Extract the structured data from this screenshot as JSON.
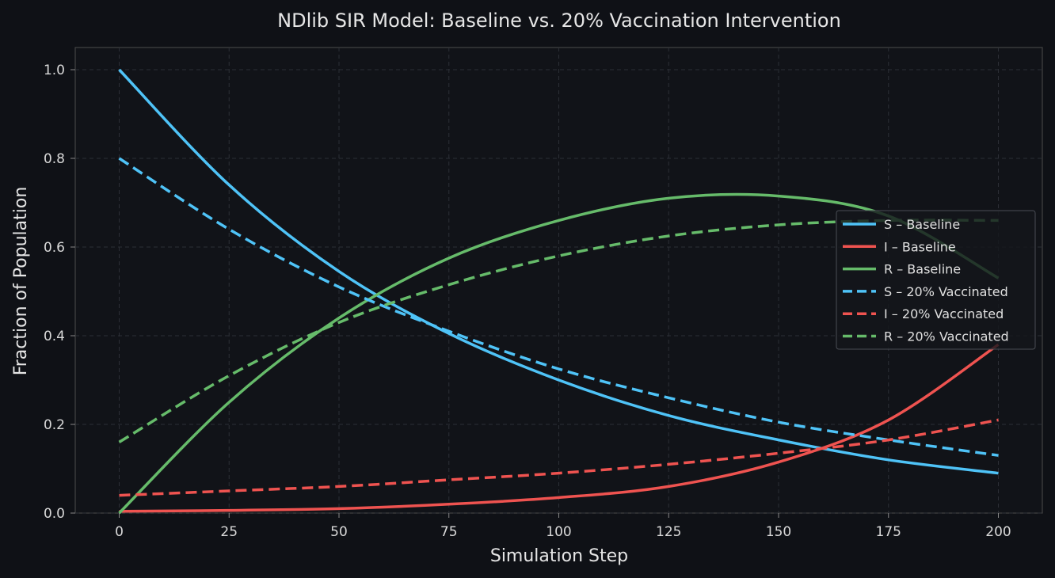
{
  "chart_data": {
    "type": "line",
    "title": "NDlib SIR Model: Baseline vs. 20% Vaccination Intervention",
    "xlabel": "Simulation Step",
    "ylabel": "Fraction of Population",
    "xlim": [
      -10,
      210
    ],
    "ylim": [
      0,
      1.05
    ],
    "xticks": [
      "0",
      "25",
      "50",
      "75",
      "100",
      "125",
      "150",
      "175",
      "200"
    ],
    "yticks": [
      "0.0",
      "0.2",
      "0.4",
      "0.6",
      "0.8",
      "1.0"
    ],
    "grid": true,
    "legend_position": "right",
    "x": [
      0,
      25,
      50,
      75,
      100,
      125,
      150,
      175,
      200
    ],
    "series": [
      {
        "name": "S – Baseline",
        "color": "#4fc3f7",
        "dash": false,
        "values": [
          1.0,
          0.74,
          0.545,
          0.405,
          0.3,
          0.22,
          0.165,
          0.12,
          0.09
        ]
      },
      {
        "name": "I – Baseline",
        "color": "#ef5350",
        "dash": false,
        "values": [
          0.004,
          0.006,
          0.01,
          0.02,
          0.035,
          0.06,
          0.115,
          0.21,
          0.38
        ]
      },
      {
        "name": "R – Baseline",
        "color": "#66bb6a",
        "dash": false,
        "values": [
          0.0,
          0.25,
          0.44,
          0.575,
          0.66,
          0.71,
          0.715,
          0.67,
          0.53
        ]
      },
      {
        "name": "S – 20% Vaccinated",
        "color": "#4fc3f7",
        "dash": true,
        "values": [
          0.8,
          0.64,
          0.51,
          0.41,
          0.325,
          0.26,
          0.205,
          0.165,
          0.13
        ]
      },
      {
        "name": "I – 20% Vaccinated",
        "color": "#ef5350",
        "dash": true,
        "values": [
          0.04,
          0.05,
          0.06,
          0.075,
          0.09,
          0.11,
          0.135,
          0.165,
          0.21
        ]
      },
      {
        "name": "R – 20% Vaccinated",
        "color": "#66bb6a",
        "dash": true,
        "values": [
          0.16,
          0.31,
          0.43,
          0.515,
          0.58,
          0.625,
          0.65,
          0.66,
          0.66
        ]
      }
    ]
  }
}
